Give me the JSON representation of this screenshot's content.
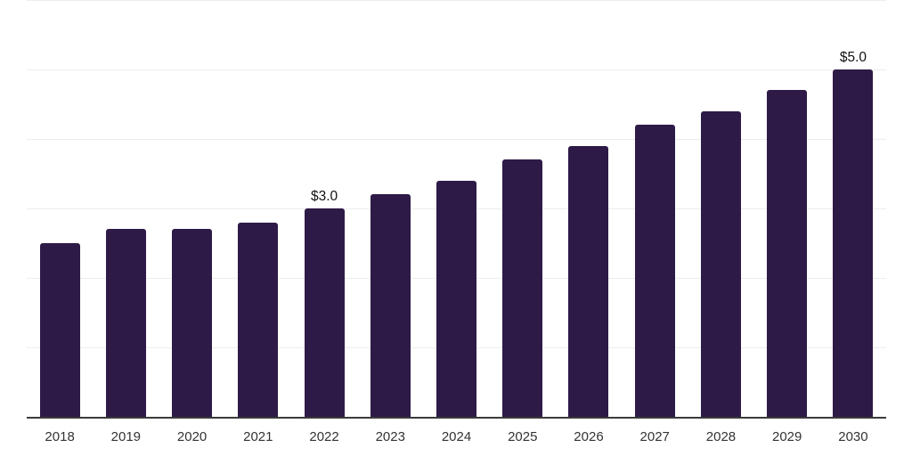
{
  "chart_data": {
    "type": "bar",
    "title": "",
    "xlabel": "",
    "ylabel": "",
    "categories": [
      "2018",
      "2019",
      "2020",
      "2021",
      "2022",
      "2023",
      "2024",
      "2025",
      "2026",
      "2027",
      "2028",
      "2029",
      "2030"
    ],
    "values": [
      2.5,
      2.7,
      2.7,
      2.8,
      3.0,
      3.2,
      3.4,
      3.7,
      3.9,
      4.2,
      4.4,
      4.7,
      5.0
    ],
    "bar_labels": {
      "2022": "$3.0",
      "2030": "$5.0"
    },
    "ylim": [
      0,
      6
    ],
    "gridlines_at": [
      1,
      2,
      3,
      4,
      5,
      6
    ],
    "grid": "horizontal",
    "legend": "none",
    "y_axis_tick_labels_visible": false,
    "bar_color": "#2E1A47",
    "axis_color": "#3b3b3b",
    "gridline_color": "#ededed",
    "tick_label_color": "#333333",
    "value_label_color": "#111111",
    "background_color": "#ffffff"
  }
}
